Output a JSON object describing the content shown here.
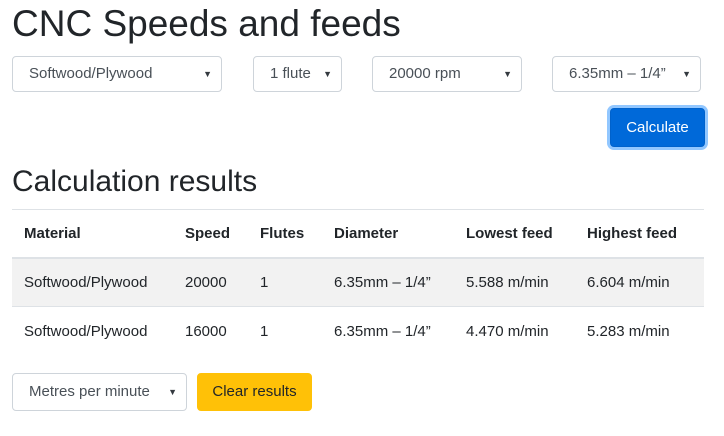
{
  "page": {
    "title": "CNC Speeds and feeds"
  },
  "form": {
    "material": {
      "value": "Softwood/Plywood",
      "icon": "chevron-down-icon"
    },
    "flutes": {
      "value": "1 flute",
      "icon": "chevron-down-icon"
    },
    "speed": {
      "value": "20000 rpm",
      "icon": "chevron-down-icon"
    },
    "diameter": {
      "value": "6.35mm – 1/4”",
      "icon": "chevron-down-icon"
    },
    "calculate_label": "Calculate"
  },
  "results": {
    "title": "Calculation results",
    "columns": [
      "Material",
      "Speed",
      "Flutes",
      "Diameter",
      "Lowest feed",
      "Highest feed"
    ],
    "rows": [
      [
        "Softwood/Plywood",
        "20000",
        "1",
        "6.35mm – 1/4”",
        "5.588 m/min",
        "6.604 m/min"
      ],
      [
        "Softwood/Plywood",
        "16000",
        "1",
        "6.35mm – 1/4”",
        "4.470 m/min",
        "5.283 m/min"
      ]
    ]
  },
  "footer": {
    "units": {
      "value": "Metres per minute",
      "icon": "chevron-down-icon"
    },
    "clear_label": "Clear results"
  },
  "colors": {
    "primary": "#0069d9",
    "warning": "#ffc107",
    "stripe": "#f2f2f2"
  }
}
